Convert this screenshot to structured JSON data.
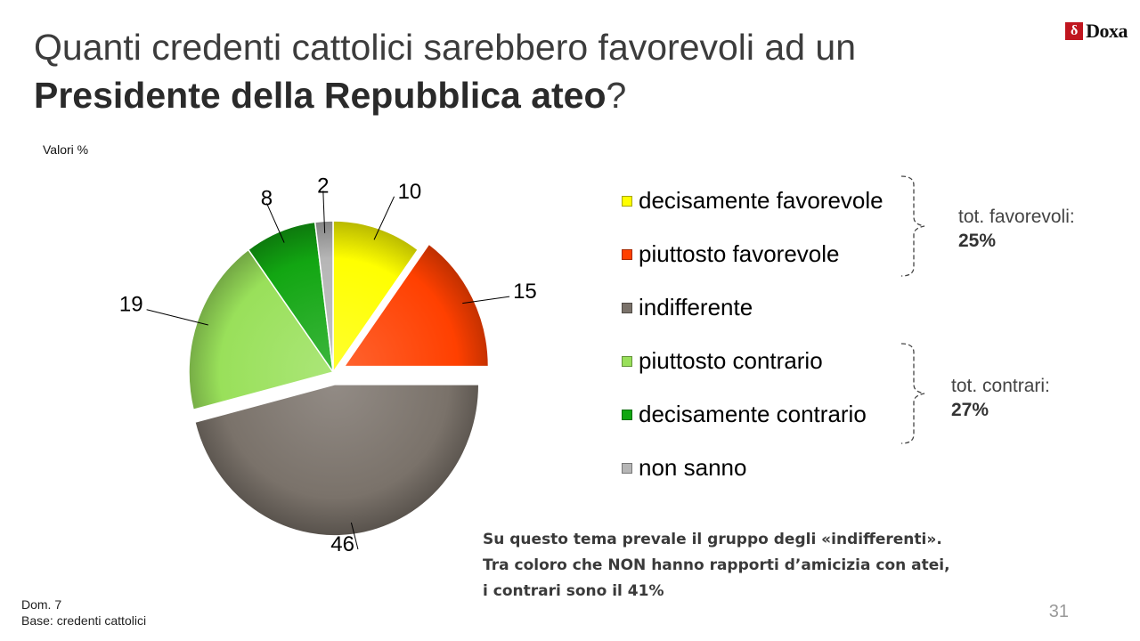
{
  "title": {
    "line1": "Quanti credenti cattolici sarebbero favorevoli ad un",
    "line2_bold": "Presidente della Repubblica ateo",
    "line2_end": "?"
  },
  "logo": {
    "text": "Doxa",
    "mark": "δ"
  },
  "units": "Valori %",
  "chart_data": {
    "type": "pie",
    "unit": "%",
    "start": "12 o'clock, clockwise",
    "slices": [
      {
        "label": "decisamente favorevole",
        "value": 10,
        "color": "#ffff00"
      },
      {
        "label": "piuttosto favorevole",
        "value": 15,
        "color": "#ff4000"
      },
      {
        "label": "indifferente",
        "value": 46,
        "color": "#7a726a"
      },
      {
        "label": "piuttosto contrario",
        "value": 19,
        "color": "#99e05a"
      },
      {
        "label": "decisamente contrario",
        "value": 8,
        "color": "#12a612"
      },
      {
        "label": "non sanno",
        "value": 2,
        "color": "#b6b6b6"
      }
    ],
    "exploded": [
      "piuttosto favorevole",
      "indifferente"
    ],
    "legend_position": "right"
  },
  "totals": {
    "favorevoli": {
      "label": "tot. favorevoli:",
      "value": "25%"
    },
    "contrari": {
      "label": "tot. contrari:",
      "value": "27%"
    }
  },
  "note": [
    "Su questo tema prevale il gruppo degli «indifferenti».",
    "Tra coloro che NON hanno rapporti d’amicizia con atei,",
    "i contrari sono il 41%"
  ],
  "footer": {
    "question": "Dom. 7",
    "base": "Base: credenti cattolici"
  },
  "page_number": "31"
}
